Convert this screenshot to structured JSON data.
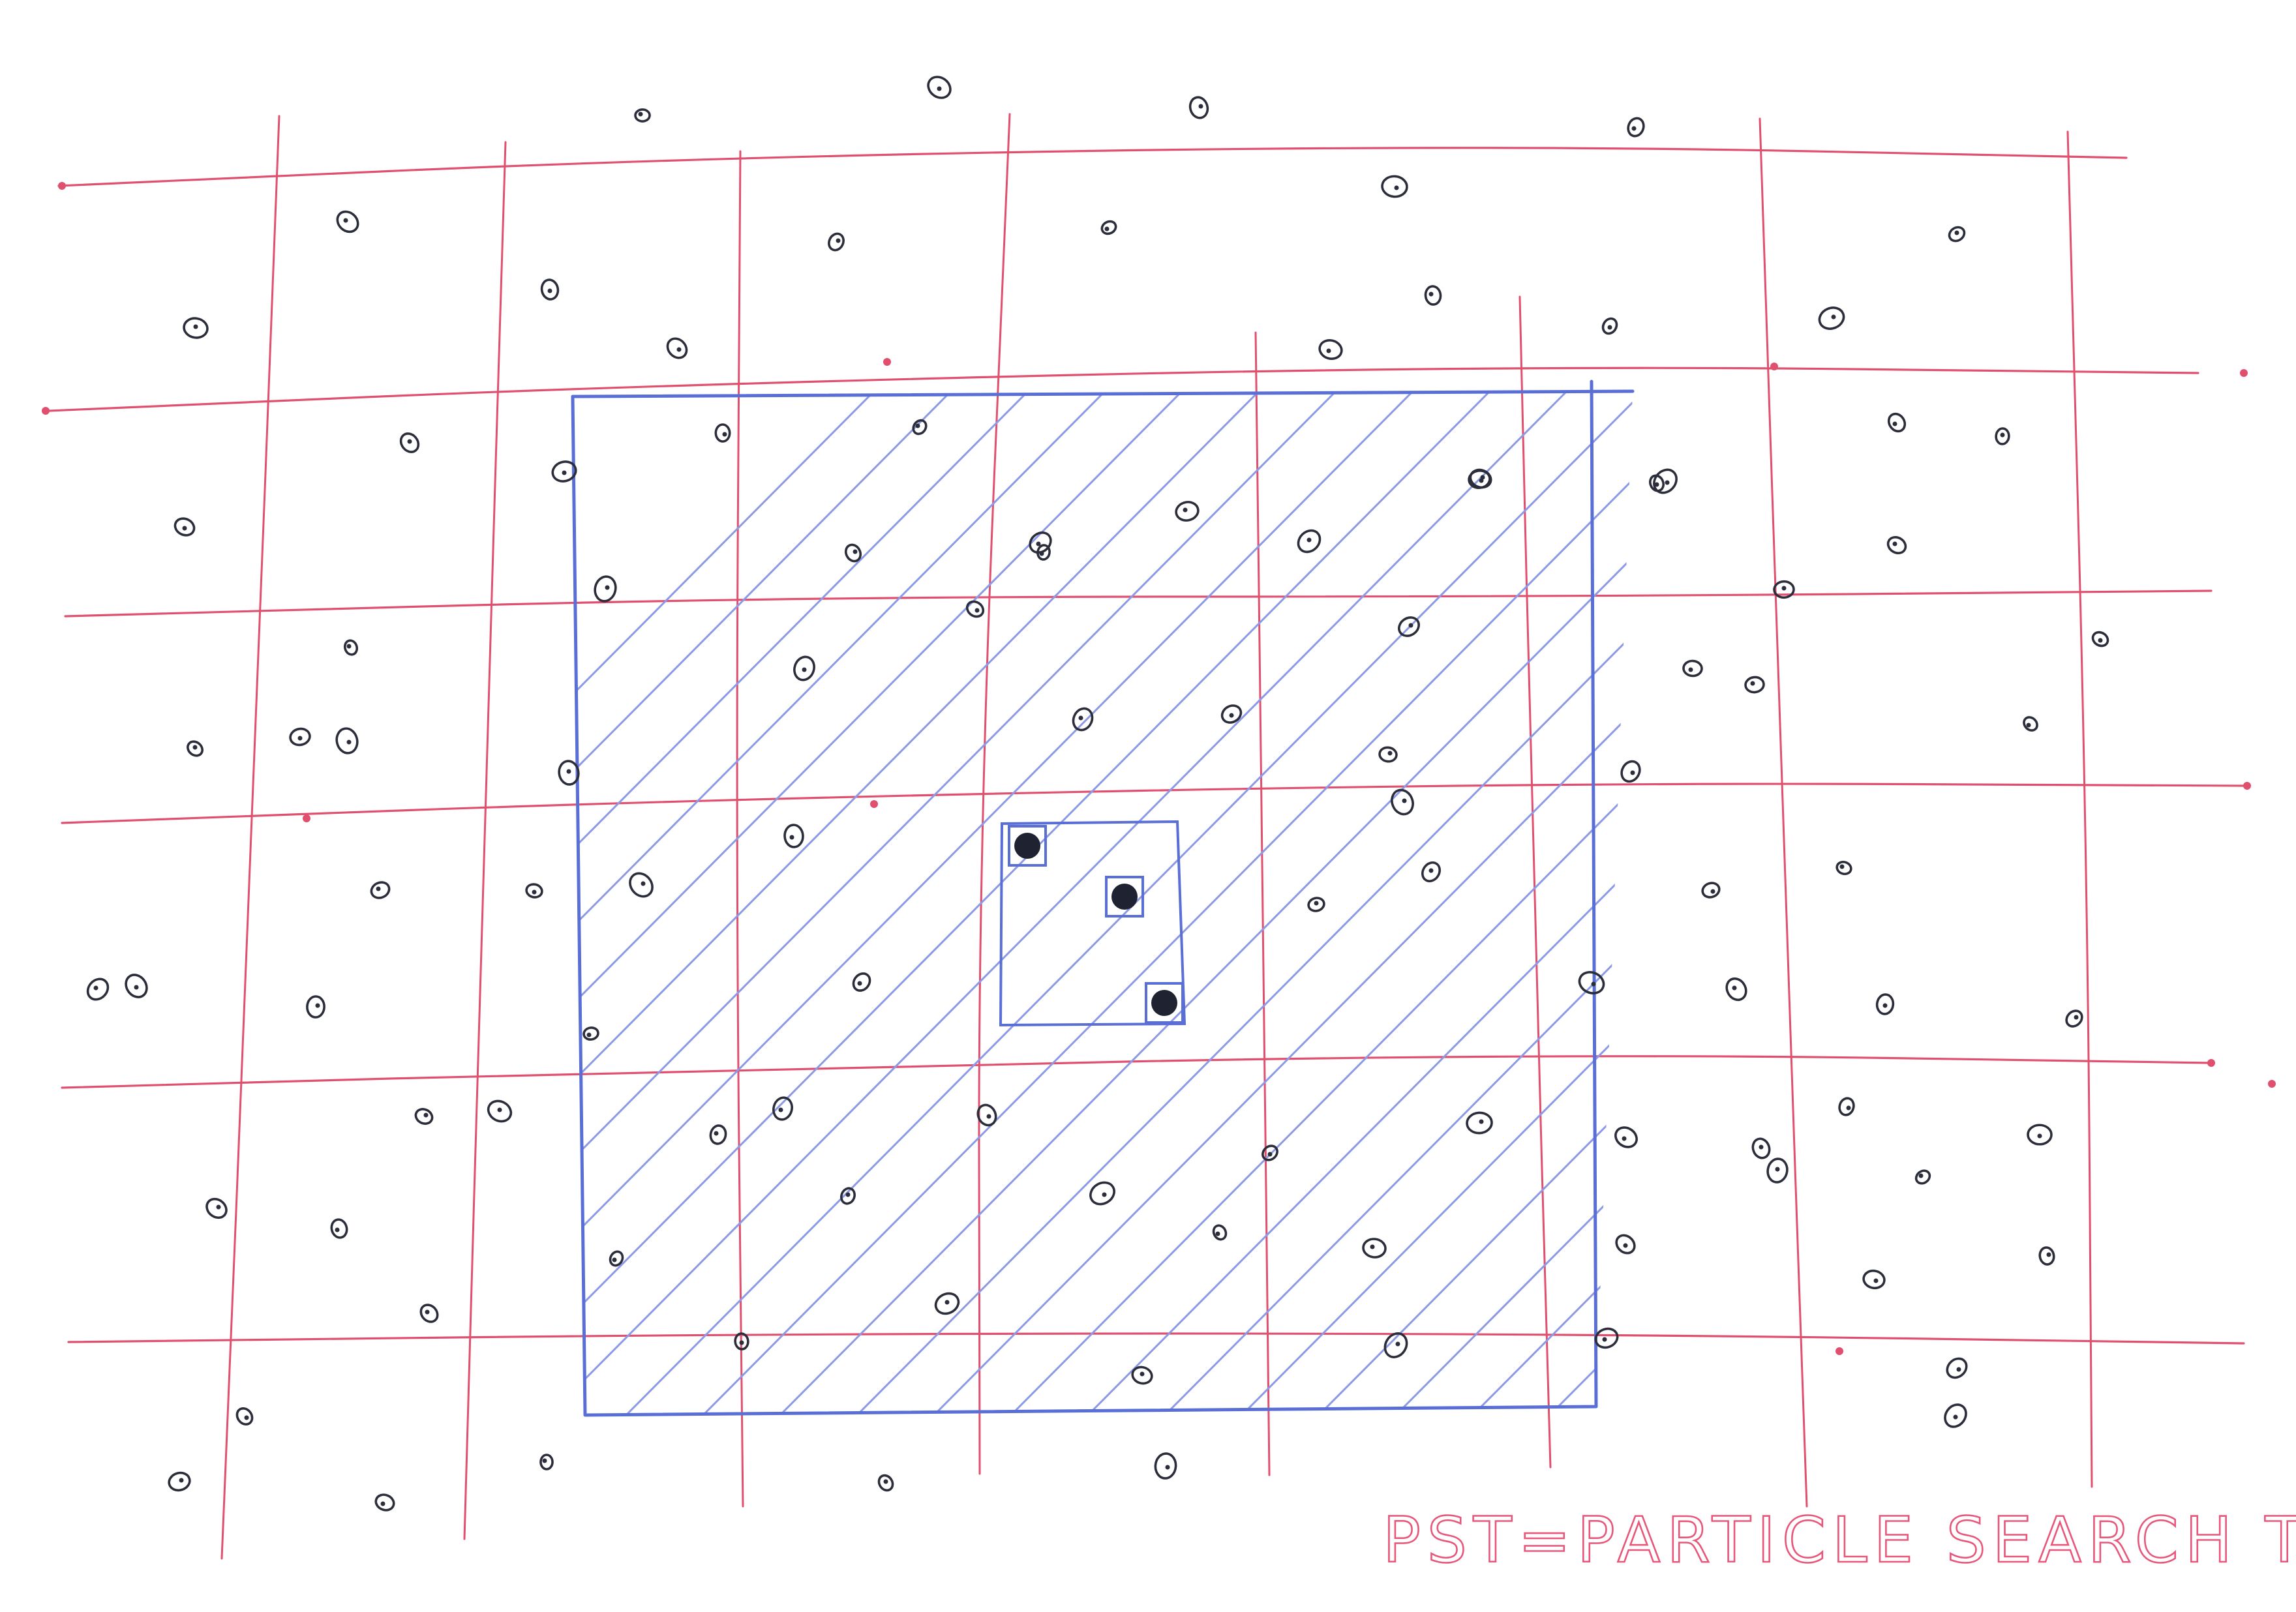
{
  "caption": "PST=PARTICLE SEARCH TREE",
  "colors": {
    "grid": "#e0506e",
    "search_region": "#5a6fd6",
    "hatch": "#8c9ae6",
    "particle": "#2b2e3a",
    "highlight_fill": "#1f2230",
    "caption": "#e8567a"
  },
  "grid": {
    "columns": 8,
    "rows": 6
  },
  "search_region": {
    "hatched": true,
    "inner_box_particles": 3
  },
  "particles": {
    "count": 130,
    "highlighted": 3
  }
}
